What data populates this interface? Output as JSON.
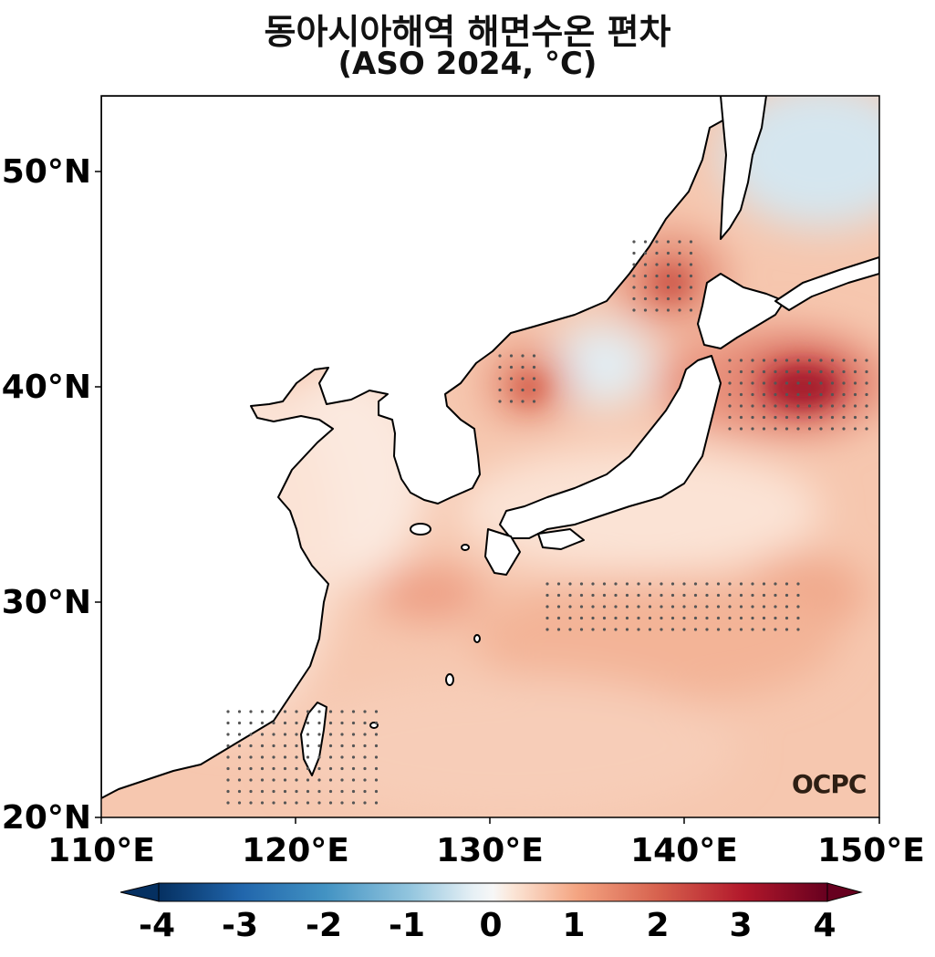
{
  "title": {
    "line1": "동아시아해역 해면수온 편차",
    "line2": "(ASO 2024, °C)"
  },
  "map": {
    "lat_labels": [
      "50°N",
      "40°N",
      "30°N",
      "20°N"
    ],
    "lon_labels": [
      "110°E",
      "120°E",
      "130°E",
      "140°E",
      "150°E"
    ],
    "lon_range": [
      110,
      150
    ],
    "lat_range": [
      20,
      53.5
    ],
    "logo_text": "OCPC",
    "land_color": "#ffffff",
    "coast_color": "#000000",
    "stipple_color": "#555555"
  },
  "colorbar": {
    "colormap": "RdBu_r",
    "min": -4,
    "max": 4,
    "ticks": [
      "-4",
      "-3",
      "-2",
      "-1",
      "0",
      "1",
      "2",
      "3",
      "4"
    ],
    "extend": "both"
  }
}
